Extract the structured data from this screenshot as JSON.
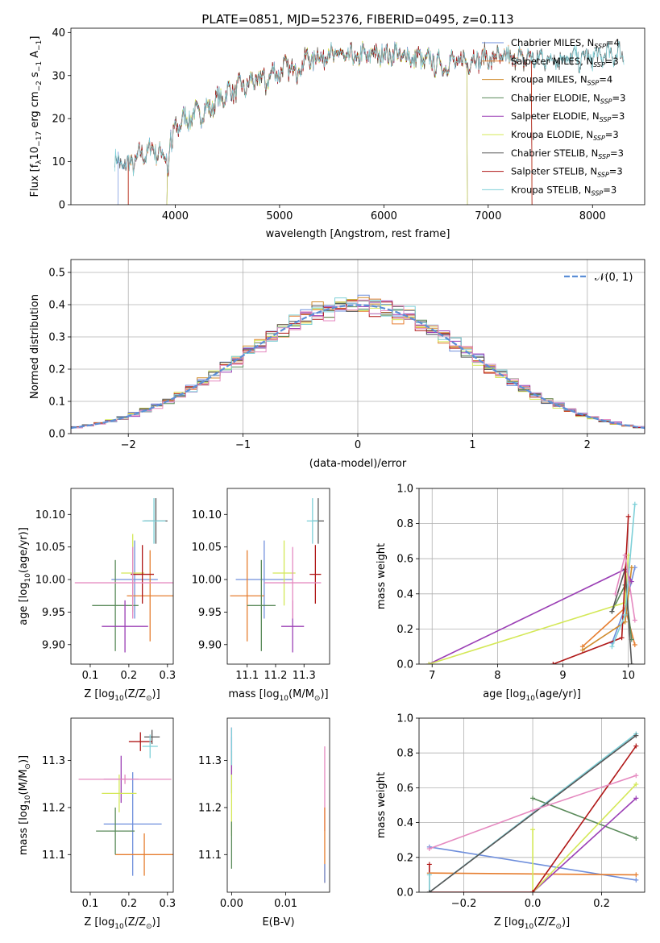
{
  "figure_title": "PLATE=0851, MJD=52376, FIBERID=0495, z=0.113",
  "colors": {
    "Chabrier MILES": "#6f8fdc",
    "Salpeter MILES": "#e67e30",
    "Kroupa MILES": "#d08b2c",
    "Chabrier ELODIE": "#5a8a5a",
    "Salpeter ELODIE": "#9b3fb5",
    "Kroupa ELODIE": "#d4e857",
    "Chabrier STELIB": "#555555",
    "Salpeter STELIB": "#b01818",
    "Kroupa STELIB": "#7ed0d8",
    "pink": "#e58ac0",
    "normal": "#5b8ed6"
  },
  "chart_data": [
    {
      "id": "spectrum",
      "type": "line",
      "title": "PLATE=0851, MJD=52376, FIBERID=0495, z=0.113",
      "xlabel": "wavelength [Angstrom, rest frame]",
      "ylabel_parts": [
        "Flux [f",
        "λ",
        "10",
        "−17",
        " erg cm",
        "−2",
        " s",
        "−1",
        " A",
        "−1",
        "]"
      ],
      "xlim": [
        3000,
        8500
      ],
      "ylim": [
        0,
        41
      ],
      "xticks": [
        4000,
        5000,
        6000,
        7000,
        8000
      ],
      "yticks": [
        0,
        10,
        20,
        30,
        40
      ],
      "grid": false,
      "legend_position": "top-right",
      "legend": [
        {
          "base": "Chabrier MILES, N",
          "sub": "SSP",
          "tail": "=4"
        },
        {
          "base": "Salpeter MILES, N",
          "sub": "SSP",
          "tail": "=3"
        },
        {
          "base": "Kroupa MILES, N",
          "sub": "SSP",
          "tail": "=4"
        },
        {
          "base": "Chabrier ELODIE, N",
          "sub": "SSP",
          "tail": "=3"
        },
        {
          "base": "Salpeter ELODIE, N",
          "sub": "SSP",
          "tail": "=3"
        },
        {
          "base": "Kroupa ELODIE, N",
          "sub": "SSP",
          "tail": "=3"
        },
        {
          "base": "Chabrier STELIB, N",
          "sub": "SSP",
          "tail": "=3"
        },
        {
          "base": "Salpeter STELIB, N",
          "sub": "SSP",
          "tail": "=3"
        },
        {
          "base": "Kroupa STELIB, N",
          "sub": "SSP",
          "tail": "=3"
        }
      ],
      "continuum": [
        [
          3420,
          10
        ],
        [
          3550,
          9
        ],
        [
          3700,
          12
        ],
        [
          3800,
          13
        ],
        [
          3900,
          11
        ],
        [
          4000,
          18
        ],
        [
          4100,
          20
        ],
        [
          4300,
          22
        ],
        [
          4500,
          26
        ],
        [
          4700,
          28
        ],
        [
          4900,
          30
        ],
        [
          5100,
          32
        ],
        [
          5300,
          34
        ],
        [
          5500,
          35
        ],
        [
          5700,
          34
        ],
        [
          5900,
          35
        ],
        [
          6100,
          35
        ],
        [
          6300,
          34
        ],
        [
          6500,
          33
        ],
        [
          6700,
          33
        ],
        [
          6900,
          34
        ],
        [
          7100,
          34
        ],
        [
          7300,
          34
        ],
        [
          7600,
          34
        ],
        [
          7900,
          34
        ],
        [
          8250,
          35
        ]
      ],
      "model_ranges": [
        {
          "series": "Chabrier MILES",
          "xmin": 3450,
          "xmax": 7420
        },
        {
          "series": "Salpeter MILES",
          "xmin": 3550,
          "xmax": 7420
        },
        {
          "series": "Kroupa MILES",
          "xmin": 3550,
          "xmax": 7420
        },
        {
          "series": "Chabrier ELODIE",
          "xmin": 3920,
          "xmax": 6800
        },
        {
          "series": "Salpeter ELODIE",
          "xmin": 3920,
          "xmax": 6800
        },
        {
          "series": "Kroupa ELODIE",
          "xmin": 3920,
          "xmax": 6800
        },
        {
          "series": "Chabrier STELIB",
          "xmin": 3420,
          "xmax": 8300
        },
        {
          "series": "Salpeter STELIB",
          "xmin": 3550,
          "xmax": 7420
        },
        {
          "series": "Kroupa STELIB",
          "xmin": 3420,
          "xmax": 8300
        }
      ]
    },
    {
      "id": "residuals",
      "type": "histogram",
      "xlabel": "(data-model)/error",
      "ylabel": "Normed distribution",
      "xlim": [
        -2.5,
        2.5
      ],
      "ylim": [
        0,
        0.54
      ],
      "xticks": [
        -2,
        -1,
        0,
        1,
        2
      ],
      "yticks": [
        0.0,
        0.1,
        0.2,
        0.3,
        0.4,
        0.5
      ],
      "grid": true,
      "bin_width": 0.1,
      "legend_position": "top-right",
      "legend_label": "𝒩(0, 1)",
      "series_order": [
        "Chabrier MILES",
        "Salpeter MILES",
        "Kroupa MILES",
        "Chabrier ELODIE",
        "Salpeter ELODIE",
        "Kroupa ELODIE",
        "Chabrier STELIB",
        "Salpeter STELIB",
        "Kroupa STELIB",
        "pink"
      ],
      "offsets": [
        0.012,
        -0.01,
        0.008,
        -0.006,
        0.015,
        0.03,
        -0.012,
        0.01,
        -0.015,
        -0.022,
        0.02,
        0.005,
        -0.018,
        0.025,
        -0.008,
        0.012,
        -0.025,
        0.018,
        0.002,
        -0.014,
        0.028,
        -0.005,
        0.01,
        -0.02,
        0.015,
        0.04,
        -0.028,
        0.022,
        -0.01,
        0.035,
        0.008,
        -0.016,
        0.024,
        -0.03,
        0.012,
        0.045,
        -0.002,
        0.018,
        -0.02,
        0.03,
        0.01,
        -0.024,
        0.014,
        0.032,
        -0.012,
        0.006,
        0.02,
        -0.018,
        0.026,
        -0.008
      ]
    },
    {
      "id": "age-vs-Z",
      "type": "errorbar",
      "xlabel_parts": [
        "Z [log",
        "10",
        "(Z/Z",
        "⊙",
        ")]"
      ],
      "ylabel_parts": [
        "age  [log",
        "10",
        "(age/yr)]"
      ],
      "xlim": [
        0.05,
        0.315
      ],
      "ylim": [
        9.87,
        10.14
      ],
      "xticks": [
        0.1,
        0.2,
        0.3
      ],
      "yticks": [
        9.9,
        9.95,
        10.0,
        10.05,
        10.1
      ],
      "grid": false,
      "points": [
        {
          "series": "Chabrier MILES",
          "x": 0.215,
          "y": 10.0,
          "xerr": 0.06,
          "yerr": 0.06
        },
        {
          "series": "Salpeter MILES",
          "x": 0.255,
          "y": 9.975,
          "xerr": 0.06,
          "yerr": 0.07
        },
        {
          "series": "Chabrier ELODIE",
          "x": 0.165,
          "y": 9.96,
          "xerr": 0.06,
          "yerr": 0.07
        },
        {
          "series": "Salpeter ELODIE",
          "x": 0.19,
          "y": 9.928,
          "xerr": 0.06,
          "yerr": 0.04
        },
        {
          "series": "Kroupa ELODIE",
          "x": 0.21,
          "y": 10.01,
          "xerr": 0.03,
          "yerr": 0.06
        },
        {
          "series": "Chabrier STELIB",
          "x": 0.27,
          "y": 10.09,
          "xerr": 0.03,
          "yerr": 0.035
        },
        {
          "series": "Salpeter STELIB",
          "x": 0.235,
          "y": 10.008,
          "xerr": 0.03,
          "yerr": 0.045
        },
        {
          "series": "Kroupa STELIB",
          "x": 0.265,
          "y": 10.09,
          "xerr": 0.03,
          "yerr": 0.035
        },
        {
          "series": "pink",
          "x": 0.21,
          "y": 9.995,
          "xerr": 0.15,
          "yerr": 0.055
        }
      ]
    },
    {
      "id": "age-vs-mass",
      "type": "errorbar",
      "xlabel_parts": [
        "mass [log",
        "10",
        "(M/M",
        "⊙",
        ")]"
      ],
      "ylabel_parts": [],
      "xlim": [
        11.03,
        11.39
      ],
      "ylim": [
        9.87,
        10.14
      ],
      "xticks": [
        11.1,
        11.2,
        11.3
      ],
      "yticks": [
        9.9,
        9.95,
        10.0,
        10.05,
        10.1
      ],
      "grid": false,
      "points": [
        {
          "series": "Chabrier MILES",
          "x": 11.16,
          "y": 10.0,
          "xerr": 0.1,
          "yerr": 0.06
        },
        {
          "series": "Salpeter MILES",
          "x": 11.1,
          "y": 9.975,
          "xerr": 0.06,
          "yerr": 0.07
        },
        {
          "series": "Chabrier ELODIE",
          "x": 11.15,
          "y": 9.96,
          "xerr": 0.05,
          "yerr": 0.07
        },
        {
          "series": "Salpeter ELODIE",
          "x": 11.26,
          "y": 9.928,
          "xerr": 0.04,
          "yerr": 0.04
        },
        {
          "series": "Kroupa ELODIE",
          "x": 11.23,
          "y": 10.01,
          "xerr": 0.04,
          "yerr": 0.05
        },
        {
          "series": "Chabrier STELIB",
          "x": 11.35,
          "y": 10.09,
          "xerr": 0.02,
          "yerr": 0.035
        },
        {
          "series": "Salpeter STELIB",
          "x": 11.34,
          "y": 10.008,
          "xerr": 0.02,
          "yerr": 0.045
        },
        {
          "series": "Kroupa STELIB",
          "x": 11.33,
          "y": 10.09,
          "xerr": 0.02,
          "yerr": 0.035
        },
        {
          "series": "pink",
          "x": 11.26,
          "y": 9.995,
          "xerr": 0.1,
          "yerr": 0.055
        }
      ]
    },
    {
      "id": "mass-weight-vs-age",
      "type": "line",
      "xlabel_parts": [
        "age  [log",
        "10",
        "(age/yr)]"
      ],
      "ylabel": "mass weight",
      "xlim": [
        6.8,
        10.25
      ],
      "ylim": [
        0,
        1.0
      ],
      "xticks": [
        7,
        8,
        9,
        10
      ],
      "yticks": [
        0.0,
        0.2,
        0.4,
        0.6,
        0.8,
        1.0
      ],
      "grid": true,
      "series": [
        {
          "name": "Chabrier MILES",
          "x": [
            9.75,
            9.95,
            10.1
          ],
          "y": [
            0.12,
            0.32,
            0.55
          ]
        },
        {
          "name": "Salpeter MILES",
          "x": [
            9.3,
            9.95,
            10.1
          ],
          "y": [
            0.1,
            0.32,
            0.11
          ]
        },
        {
          "name": "Kroupa MILES",
          "x": [
            9.3,
            9.95,
            10.05
          ],
          "y": [
            0.08,
            0.24,
            0.55
          ]
        },
        {
          "name": "Chabrier ELODIE",
          "x": [
            9.75,
            9.95,
            10.05
          ],
          "y": [
            0.3,
            0.45,
            0.14
          ]
        },
        {
          "name": "Salpeter ELODIE",
          "x": [
            6.95,
            9.95,
            10.05
          ],
          "y": [
            0.0,
            0.54,
            0.47
          ]
        },
        {
          "name": "Kroupa ELODIE",
          "x": [
            6.95,
            9.95,
            10.0
          ],
          "y": [
            0.0,
            0.35,
            0.62
          ]
        },
        {
          "name": "Chabrier STELIB",
          "x": [
            9.75,
            9.95,
            10.05
          ],
          "y": [
            0.3,
            0.54,
            0.0
          ]
        },
        {
          "name": "Salpeter STELIB",
          "x": [
            8.85,
            9.9,
            10.0
          ],
          "y": [
            0.0,
            0.15,
            0.84
          ]
        },
        {
          "name": "Kroupa STELIB",
          "x": [
            9.75,
            9.95,
            10.1
          ],
          "y": [
            0.1,
            0.28,
            0.91
          ]
        },
        {
          "name": "pink",
          "x": [
            9.8,
            9.95,
            10.1
          ],
          "y": [
            0.4,
            0.62,
            0.25
          ]
        }
      ]
    },
    {
      "id": "mass-vs-Z",
      "type": "errorbar",
      "xlabel_parts": [
        "Z [log",
        "10",
        "(Z/Z",
        "⊙",
        ")]"
      ],
      "ylabel_parts": [
        "mass [log",
        "10",
        "(M/M",
        "⊙",
        ")]"
      ],
      "xlim": [
        0.05,
        0.315
      ],
      "ylim": [
        11.02,
        11.39
      ],
      "xticks": [
        0.1,
        0.2,
        0.3
      ],
      "yticks": [
        11.1,
        11.2,
        11.3
      ],
      "grid": false,
      "points": [
        {
          "series": "Chabrier MILES",
          "x": 0.21,
          "y": 11.165,
          "xerr": 0.075,
          "yerr": 0.11
        },
        {
          "series": "Salpeter MILES",
          "x": 0.24,
          "y": 11.1,
          "xerr": 0.075,
          "yerr": 0.045
        },
        {
          "series": "Chabrier ELODIE",
          "x": 0.165,
          "y": 11.15,
          "xerr": 0.05,
          "yerr": 0.05
        },
        {
          "series": "Salpeter ELODIE",
          "x": 0.18,
          "y": 11.26,
          "xerr": 0.045,
          "yerr": 0.05
        },
        {
          "series": "Kroupa ELODIE",
          "x": 0.175,
          "y": 11.23,
          "xerr": 0.045,
          "yerr": 0.04
        },
        {
          "series": "Chabrier STELIB",
          "x": 0.26,
          "y": 11.35,
          "xerr": 0.02,
          "yerr": 0.015
        },
        {
          "series": "Salpeter STELIB",
          "x": 0.23,
          "y": 11.34,
          "xerr": 0.03,
          "yerr": 0.02
        },
        {
          "series": "Kroupa STELIB",
          "x": 0.255,
          "y": 11.33,
          "xerr": 0.02,
          "yerr": 0.025
        },
        {
          "series": "pink",
          "x": 0.19,
          "y": 11.26,
          "xerr": 0.12,
          "yerr": 0.01
        }
      ]
    },
    {
      "id": "mass-vs-EBV",
      "type": "errorbar",
      "xlabel": "E(B-V)",
      "ylabel_parts": [],
      "xlim": [
        -0.0008,
        0.0181
      ],
      "ylim": [
        11.02,
        11.39
      ],
      "xticks": [
        0.0,
        0.01
      ],
      "yticks": [
        11.1,
        11.2,
        11.3
      ],
      "grid": false,
      "points": [
        {
          "series": "Chabrier MILES",
          "x": 0.0,
          "y": 11.29,
          "xerr": 0,
          "yerr": 0.06
        },
        {
          "series": "Kroupa ELODIE",
          "x": 0.0,
          "y": 11.23,
          "xerr": 0,
          "yerr": 0.09
        },
        {
          "series": "Chabrier ELODIE",
          "x": 0.0,
          "y": 11.12,
          "xerr": 0,
          "yerr": 0.05
        },
        {
          "series": "Salpeter ELODIE",
          "x": 0.0,
          "y": 11.32,
          "xerr": 0,
          "yerr": 0.05
        },
        {
          "series": "Kroupa STELIB",
          "x": 0.0,
          "y": 11.33,
          "xerr": 0,
          "yerr": 0.04
        },
        {
          "series": "pink",
          "x": 0.0172,
          "y": 11.24,
          "xerr": 0,
          "yerr": 0.09
        },
        {
          "series": "Salpeter MILES",
          "x": 0.0172,
          "y": 11.12,
          "xerr": 0,
          "yerr": 0.08
        },
        {
          "series": "Chabrier MILES",
          "x": 0.0172,
          "y": 11.06,
          "xerr": 0,
          "yerr": 0.02
        }
      ]
    },
    {
      "id": "mass-weight-vs-Z",
      "type": "line",
      "xlabel_parts": [
        "Z [log",
        "10",
        "(Z/Z",
        "⊙",
        ")]"
      ],
      "ylabel": "mass weight",
      "xlim": [
        -0.33,
        0.325
      ],
      "ylim": [
        0,
        1.0
      ],
      "xticks": [
        -0.2,
        0.0,
        0.2
      ],
      "yticks": [
        0.0,
        0.2,
        0.4,
        0.6,
        0.8,
        1.0
      ],
      "grid": true,
      "series": [
        {
          "name": "Chabrier MILES",
          "x": [
            -0.3,
            0.3
          ],
          "y": [
            0.26,
            0.07
          ]
        },
        {
          "name": "Salpeter MILES",
          "x": [
            -0.3,
            0.3
          ],
          "y": [
            0.11,
            0.1
          ]
        },
        {
          "name": "Chabrier ELODIE",
          "x": [
            0.0,
            0.3
          ],
          "y": [
            0.54,
            0.31
          ]
        },
        {
          "name": "Salpeter ELODIE",
          "x": [
            0.0,
            0.3
          ],
          "y": [
            0.0,
            0.54
          ]
        },
        {
          "name": "Kroupa ELODIE",
          "x": [
            0.0,
            0.0,
            0.3
          ],
          "y": [
            0.36,
            0.0,
            0.62
          ]
        },
        {
          "name": "Salpeter STELIB",
          "x": [
            -0.3,
            -0.3,
            0.0,
            0.3
          ],
          "y": [
            0.16,
            0.0,
            0.0,
            0.84
          ]
        },
        {
          "name": "Kroupa STELIB",
          "x": [
            -0.3,
            -0.3,
            0.3
          ],
          "y": [
            0.1,
            0.0,
            0.91
          ]
        },
        {
          "name": "Chabrier STELIB",
          "x": [
            -0.3,
            0.3
          ],
          "y": [
            0.0,
            0.9
          ]
        },
        {
          "name": "pink",
          "x": [
            -0.3,
            0.0,
            0.3
          ],
          "y": [
            0.25,
            0.47,
            0.67
          ]
        }
      ]
    }
  ]
}
